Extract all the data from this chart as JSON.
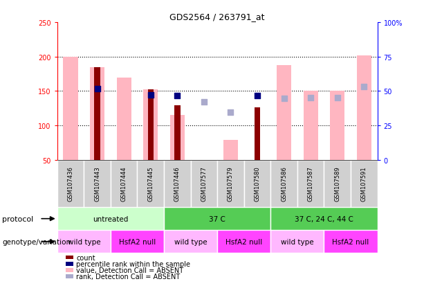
{
  "title": "GDS2564 / 263791_at",
  "samples": [
    "GSM107436",
    "GSM107443",
    "GSM107444",
    "GSM107445",
    "GSM107446",
    "GSM107577",
    "GSM107579",
    "GSM107580",
    "GSM107586",
    "GSM107587",
    "GSM107589",
    "GSM107591"
  ],
  "value_bar": [
    200,
    185,
    170,
    152,
    115,
    null,
    79,
    null,
    188,
    150,
    150,
    202
  ],
  "count_bar": [
    null,
    185,
    null,
    152,
    129,
    null,
    null,
    126,
    null,
    null,
    null,
    null
  ],
  "rank_blue": [
    null,
    153,
    null,
    144,
    143,
    null,
    null,
    143,
    null,
    null,
    null,
    null
  ],
  "rank_absent": [
    null,
    null,
    null,
    null,
    null,
    134,
    119,
    null,
    139,
    140,
    140,
    157
  ],
  "ylim_left": [
    50,
    250
  ],
  "ylim_right": [
    0,
    100
  ],
  "yticks_left": [
    50,
    100,
    150,
    200,
    250
  ],
  "ytick_labels_left": [
    "50",
    "100",
    "150",
    "200",
    "250"
  ],
  "yticks_right_vals": [
    0,
    25,
    50,
    75,
    100
  ],
  "yticks_right_labels": [
    "0",
    "25",
    "50",
    "75",
    "100%"
  ],
  "color_value_bar": "#FFB6C1",
  "color_count_bar": "#8B0000",
  "color_rank_blue": "#000080",
  "color_rank_absent": "#AAAACC",
  "protocol_groups": [
    {
      "label": "untreated",
      "start": 0,
      "end": 3,
      "color": "#CCFFCC"
    },
    {
      "label": "37 C",
      "start": 4,
      "end": 7,
      "color": "#55CC55"
    },
    {
      "label": "37 C, 24 C, 44 C",
      "start": 8,
      "end": 11,
      "color": "#55CC55"
    }
  ],
  "genotype_groups": [
    {
      "label": "wild type",
      "start": 0,
      "end": 1,
      "color": "#FFB8FF"
    },
    {
      "label": "HsfA2 null",
      "start": 2,
      "end": 3,
      "color": "#FF44FF"
    },
    {
      "label": "wild type",
      "start": 4,
      "end": 5,
      "color": "#FFB8FF"
    },
    {
      "label": "HsfA2 null",
      "start": 6,
      "end": 7,
      "color": "#FF44FF"
    },
    {
      "label": "wild type",
      "start": 8,
      "end": 9,
      "color": "#FFB8FF"
    },
    {
      "label": "HsfA2 null",
      "start": 10,
      "end": 11,
      "color": "#FF44FF"
    }
  ],
  "legend_items": [
    {
      "color": "#8B0000",
      "label": "count"
    },
    {
      "color": "#000080",
      "label": "percentile rank within the sample"
    },
    {
      "color": "#FFB6C1",
      "label": "value, Detection Call = ABSENT"
    },
    {
      "color": "#AAAACC",
      "label": "rank, Detection Call = ABSENT"
    }
  ]
}
